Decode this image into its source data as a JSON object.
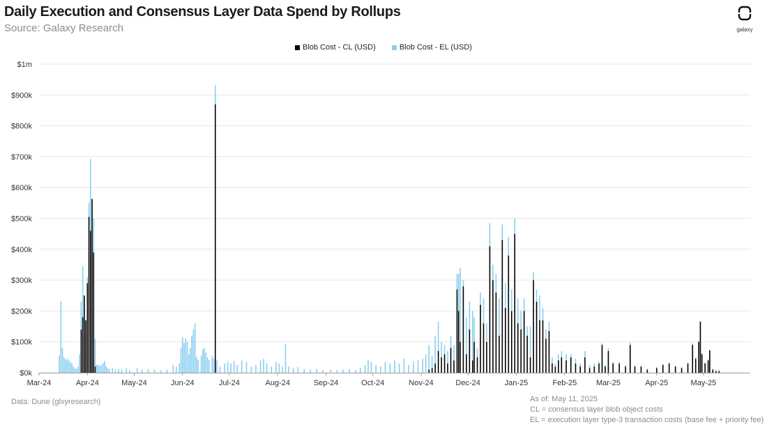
{
  "header": {
    "title": "Daily Execution and Consensus Layer Data Spend by Rollups",
    "subtitle": "Source: Galaxy Research",
    "logo_text": "galaxy"
  },
  "footer": {
    "data_source": "Data: Dune (glxyresearch)",
    "as_of": "As of: May 11, 2025",
    "cl_note": "CL = consensus layer blob object costs",
    "el_note": "EL = execution layer type-3 transaction costs (base fee + priority fee)"
  },
  "chart_data": {
    "type": "bar",
    "stacked": true,
    "legend": [
      "Blob Cost - CL (USD)",
      "Blob Cost - EL (USD)"
    ],
    "legend_position": "top-center",
    "colors": {
      "cl": "#000000",
      "el": "#89CFF0"
    },
    "gridlines": "horizontal",
    "y_ticks": [
      {
        "v": 0,
        "label": "$0k"
      },
      {
        "v": 100000,
        "label": "$100k"
      },
      {
        "v": 200000,
        "label": "$200k"
      },
      {
        "v": 300000,
        "label": "$300k"
      },
      {
        "v": 400000,
        "label": "$400k"
      },
      {
        "v": 500000,
        "label": "$500k"
      },
      {
        "v": 600000,
        "label": "$600k"
      },
      {
        "v": 700000,
        "label": "$700k"
      },
      {
        "v": 800000,
        "label": "$800k"
      },
      {
        "v": 900000,
        "label": "$900k"
      },
      {
        "v": 1000000,
        "label": "$1m"
      }
    ],
    "ylim": [
      0,
      1000000
    ],
    "x_start": "2024-03-01",
    "x_end": "2025-05-31",
    "x_ticks": [
      {
        "date": "2024-03-01",
        "label": "Mar-24"
      },
      {
        "date": "2024-04-01",
        "label": "Apr-24"
      },
      {
        "date": "2024-05-01",
        "label": "May-24"
      },
      {
        "date": "2024-06-01",
        "label": "Jun-24"
      },
      {
        "date": "2024-07-01",
        "label": "Jul-24"
      },
      {
        "date": "2024-08-01",
        "label": "Aug-24"
      },
      {
        "date": "2024-09-01",
        "label": "Sep-24"
      },
      {
        "date": "2024-10-01",
        "label": "Oct-24"
      },
      {
        "date": "2024-11-01",
        "label": "Nov-24"
      },
      {
        "date": "2024-12-01",
        "label": "Dec-24"
      },
      {
        "date": "2025-01-01",
        "label": "Jan-25"
      },
      {
        "date": "2025-02-01",
        "label": "Feb-25"
      },
      {
        "date": "2025-03-01",
        "label": "Mar-25"
      },
      {
        "date": "2025-04-01",
        "label": "Apr-25"
      },
      {
        "date": "2025-05-01",
        "label": "May-25"
      }
    ],
    "series": [
      {
        "name": "Blob Cost - CL (USD)",
        "key": "cl"
      },
      {
        "name": "Blob Cost - EL (USD)",
        "key": "el"
      }
    ],
    "points": [
      {
        "date": "2024-03-14",
        "cl": 0,
        "el": 55000
      },
      {
        "date": "2024-03-15",
        "cl": 0,
        "el": 232000
      },
      {
        "date": "2024-03-16",
        "cl": 0,
        "el": 80000
      },
      {
        "date": "2024-03-17",
        "cl": 0,
        "el": 50000
      },
      {
        "date": "2024-03-18",
        "cl": 0,
        "el": 42000
      },
      {
        "date": "2024-03-19",
        "cl": 0,
        "el": 45000
      },
      {
        "date": "2024-03-20",
        "cl": 0,
        "el": 40000
      },
      {
        "date": "2024-03-21",
        "cl": 0,
        "el": 35000
      },
      {
        "date": "2024-03-22",
        "cl": 0,
        "el": 30000
      },
      {
        "date": "2024-03-23",
        "cl": 0,
        "el": 20000
      },
      {
        "date": "2024-03-24",
        "cl": 0,
        "el": 15000
      },
      {
        "date": "2024-03-25",
        "cl": 0,
        "el": 12000
      },
      {
        "date": "2024-03-26",
        "cl": 0,
        "el": 20000
      },
      {
        "date": "2024-03-27",
        "cl": 0,
        "el": 60000
      },
      {
        "date": "2024-03-28",
        "cl": 140000,
        "el": 90000
      },
      {
        "date": "2024-03-29",
        "cl": 180000,
        "el": 165000
      },
      {
        "date": "2024-03-30",
        "cl": 250000,
        "el": 0
      },
      {
        "date": "2024-03-31",
        "cl": 170000,
        "el": 0
      },
      {
        "date": "2024-04-01",
        "cl": 290000,
        "el": 20000
      },
      {
        "date": "2024-04-02",
        "cl": 505000,
        "el": 45000
      },
      {
        "date": "2024-04-03",
        "cl": 460000,
        "el": 232000
      },
      {
        "date": "2024-04-04",
        "cl": 563000,
        "el": 0
      },
      {
        "date": "2024-04-05",
        "cl": 390000,
        "el": 110000
      },
      {
        "date": "2024-04-06",
        "cl": 20000,
        "el": 90000
      },
      {
        "date": "2024-04-07",
        "cl": 0,
        "el": 25000
      },
      {
        "date": "2024-04-08",
        "cl": 0,
        "el": 25000
      },
      {
        "date": "2024-04-09",
        "cl": 0,
        "el": 22000
      },
      {
        "date": "2024-04-10",
        "cl": 0,
        "el": 25000
      },
      {
        "date": "2024-04-11",
        "cl": 0,
        "el": 30000
      },
      {
        "date": "2024-04-12",
        "cl": 0,
        "el": 38000
      },
      {
        "date": "2024-04-13",
        "cl": 0,
        "el": 20000
      },
      {
        "date": "2024-04-14",
        "cl": 0,
        "el": 15000
      },
      {
        "date": "2024-04-15",
        "cl": 0,
        "el": 12000
      },
      {
        "date": "2024-04-17",
        "cl": 0,
        "el": 15000
      },
      {
        "date": "2024-04-19",
        "cl": 0,
        "el": 10000
      },
      {
        "date": "2024-04-21",
        "cl": 0,
        "el": 12000
      },
      {
        "date": "2024-04-23",
        "cl": 0,
        "el": 10000
      },
      {
        "date": "2024-04-26",
        "cl": 0,
        "el": 15000
      },
      {
        "date": "2024-04-28",
        "cl": 0,
        "el": 8000
      },
      {
        "date": "2024-05-03",
        "cl": 0,
        "el": 15000
      },
      {
        "date": "2024-05-06",
        "cl": 0,
        "el": 10000
      },
      {
        "date": "2024-05-10",
        "cl": 0,
        "el": 12000
      },
      {
        "date": "2024-05-14",
        "cl": 0,
        "el": 10000
      },
      {
        "date": "2024-05-18",
        "cl": 0,
        "el": 8000
      },
      {
        "date": "2024-05-22",
        "cl": 0,
        "el": 10000
      },
      {
        "date": "2024-05-26",
        "cl": 0,
        "el": 25000
      },
      {
        "date": "2024-05-28",
        "cl": 0,
        "el": 20000
      },
      {
        "date": "2024-05-30",
        "cl": 0,
        "el": 30000
      },
      {
        "date": "2024-05-31",
        "cl": 0,
        "el": 80000
      },
      {
        "date": "2024-06-01",
        "cl": 0,
        "el": 115000
      },
      {
        "date": "2024-06-02",
        "cl": 0,
        "el": 95000
      },
      {
        "date": "2024-06-03",
        "cl": 0,
        "el": 110000
      },
      {
        "date": "2024-06-04",
        "cl": 0,
        "el": 100000
      },
      {
        "date": "2024-06-05",
        "cl": 0,
        "el": 60000
      },
      {
        "date": "2024-06-06",
        "cl": 0,
        "el": 80000
      },
      {
        "date": "2024-06-07",
        "cl": 0,
        "el": 120000
      },
      {
        "date": "2024-06-08",
        "cl": 0,
        "el": 140000
      },
      {
        "date": "2024-06-09",
        "cl": 0,
        "el": 160000
      },
      {
        "date": "2024-06-10",
        "cl": 0,
        "el": 50000
      },
      {
        "date": "2024-06-11",
        "cl": 0,
        "el": 40000
      },
      {
        "date": "2024-06-13",
        "cl": 0,
        "el": 55000
      },
      {
        "date": "2024-06-14",
        "cl": 0,
        "el": 75000
      },
      {
        "date": "2024-06-15",
        "cl": 0,
        "el": 80000
      },
      {
        "date": "2024-06-16",
        "cl": 0,
        "el": 65000
      },
      {
        "date": "2024-06-17",
        "cl": 0,
        "el": 50000
      },
      {
        "date": "2024-06-18",
        "cl": 0,
        "el": 40000
      },
      {
        "date": "2024-06-20",
        "cl": 0,
        "el": 55000
      },
      {
        "date": "2024-06-21",
        "cl": 0,
        "el": 45000
      },
      {
        "date": "2024-06-22",
        "cl": 870000,
        "el": 62000
      },
      {
        "date": "2024-06-23",
        "cl": 0,
        "el": 40000
      },
      {
        "date": "2024-06-25",
        "cl": 0,
        "el": 20000
      },
      {
        "date": "2024-06-28",
        "cl": 0,
        "el": 30000
      },
      {
        "date": "2024-06-30",
        "cl": 0,
        "el": 35000
      },
      {
        "date": "2024-07-02",
        "cl": 0,
        "el": 30000
      },
      {
        "date": "2024-07-04",
        "cl": 0,
        "el": 38000
      },
      {
        "date": "2024-07-06",
        "cl": 0,
        "el": 25000
      },
      {
        "date": "2024-07-09",
        "cl": 0,
        "el": 40000
      },
      {
        "date": "2024-07-12",
        "cl": 0,
        "el": 35000
      },
      {
        "date": "2024-07-15",
        "cl": 0,
        "el": 20000
      },
      {
        "date": "2024-07-18",
        "cl": 0,
        "el": 25000
      },
      {
        "date": "2024-07-21",
        "cl": 0,
        "el": 40000
      },
      {
        "date": "2024-07-23",
        "cl": 0,
        "el": 45000
      },
      {
        "date": "2024-07-25",
        "cl": 0,
        "el": 30000
      },
      {
        "date": "2024-07-28",
        "cl": 0,
        "el": 20000
      },
      {
        "date": "2024-07-31",
        "cl": 0,
        "el": 35000
      },
      {
        "date": "2024-08-02",
        "cl": 0,
        "el": 30000
      },
      {
        "date": "2024-08-04",
        "cl": 0,
        "el": 20000
      },
      {
        "date": "2024-08-06",
        "cl": 0,
        "el": 92000
      },
      {
        "date": "2024-08-08",
        "cl": 0,
        "el": 20000
      },
      {
        "date": "2024-08-11",
        "cl": 0,
        "el": 15000
      },
      {
        "date": "2024-08-14",
        "cl": 0,
        "el": 18000
      },
      {
        "date": "2024-08-18",
        "cl": 0,
        "el": 12000
      },
      {
        "date": "2024-08-22",
        "cl": 0,
        "el": 10000
      },
      {
        "date": "2024-08-26",
        "cl": 0,
        "el": 12000
      },
      {
        "date": "2024-08-30",
        "cl": 0,
        "el": 8000
      },
      {
        "date": "2024-09-04",
        "cl": 0,
        "el": 10000
      },
      {
        "date": "2024-09-08",
        "cl": 0,
        "el": 8000
      },
      {
        "date": "2024-09-12",
        "cl": 0,
        "el": 10000
      },
      {
        "date": "2024-09-16",
        "cl": 0,
        "el": 12000
      },
      {
        "date": "2024-09-20",
        "cl": 0,
        "el": 8000
      },
      {
        "date": "2024-09-23",
        "cl": 0,
        "el": 15000
      },
      {
        "date": "2024-09-26",
        "cl": 0,
        "el": 25000
      },
      {
        "date": "2024-09-28",
        "cl": 0,
        "el": 40000
      },
      {
        "date": "2024-09-30",
        "cl": 0,
        "el": 35000
      },
      {
        "date": "2024-10-03",
        "cl": 0,
        "el": 25000
      },
      {
        "date": "2024-10-06",
        "cl": 0,
        "el": 20000
      },
      {
        "date": "2024-10-09",
        "cl": 0,
        "el": 35000
      },
      {
        "date": "2024-10-12",
        "cl": 0,
        "el": 30000
      },
      {
        "date": "2024-10-15",
        "cl": 0,
        "el": 40000
      },
      {
        "date": "2024-10-18",
        "cl": 0,
        "el": 30000
      },
      {
        "date": "2024-10-21",
        "cl": 0,
        "el": 45000
      },
      {
        "date": "2024-10-24",
        "cl": 0,
        "el": 25000
      },
      {
        "date": "2024-10-27",
        "cl": 0,
        "el": 35000
      },
      {
        "date": "2024-10-30",
        "cl": 0,
        "el": 40000
      },
      {
        "date": "2024-11-02",
        "cl": 0,
        "el": 45000
      },
      {
        "date": "2024-11-04",
        "cl": 0,
        "el": 60000
      },
      {
        "date": "2024-11-06",
        "cl": 10000,
        "el": 80000
      },
      {
        "date": "2024-11-08",
        "cl": 15000,
        "el": 40000
      },
      {
        "date": "2024-11-10",
        "cl": 30000,
        "el": 90000
      },
      {
        "date": "2024-11-12",
        "cl": 70000,
        "el": 95000
      },
      {
        "date": "2024-11-14",
        "cl": 50000,
        "el": 50000
      },
      {
        "date": "2024-11-16",
        "cl": 60000,
        "el": 30000
      },
      {
        "date": "2024-11-18",
        "cl": 30000,
        "el": 40000
      },
      {
        "date": "2024-11-20",
        "cl": 80000,
        "el": 40000
      },
      {
        "date": "2024-11-22",
        "cl": 40000,
        "el": 50000
      },
      {
        "date": "2024-11-24",
        "cl": 270000,
        "el": 50000
      },
      {
        "date": "2024-11-25",
        "cl": 200000,
        "el": 120000
      },
      {
        "date": "2024-11-26",
        "cl": 100000,
        "el": 240000
      },
      {
        "date": "2024-11-28",
        "cl": 280000,
        "el": 20000
      },
      {
        "date": "2024-11-30",
        "cl": 60000,
        "el": 120000
      },
      {
        "date": "2024-12-02",
        "cl": 140000,
        "el": 90000
      },
      {
        "date": "2024-12-04",
        "cl": 40000,
        "el": 160000
      },
      {
        "date": "2024-12-05",
        "cl": 100000,
        "el": 80000
      },
      {
        "date": "2024-12-07",
        "cl": 50000,
        "el": 30000
      },
      {
        "date": "2024-12-09",
        "cl": 220000,
        "el": 40000
      },
      {
        "date": "2024-12-11",
        "cl": 160000,
        "el": 80000
      },
      {
        "date": "2024-12-13",
        "cl": 100000,
        "el": 60000
      },
      {
        "date": "2024-12-15",
        "cl": 410000,
        "el": 75000
      },
      {
        "date": "2024-12-17",
        "cl": 300000,
        "el": 50000
      },
      {
        "date": "2024-12-19",
        "cl": 260000,
        "el": 60000
      },
      {
        "date": "2024-12-21",
        "cl": 120000,
        "el": 120000
      },
      {
        "date": "2024-12-23",
        "cl": 430000,
        "el": 50000
      },
      {
        "date": "2024-12-25",
        "cl": 210000,
        "el": 80000
      },
      {
        "date": "2024-12-27",
        "cl": 380000,
        "el": 60000
      },
      {
        "date": "2024-12-29",
        "cl": 200000,
        "el": 70000
      },
      {
        "date": "2024-12-31",
        "cl": 450000,
        "el": 50000
      },
      {
        "date": "2025-01-02",
        "cl": 160000,
        "el": 80000
      },
      {
        "date": "2025-01-04",
        "cl": 140000,
        "el": 60000
      },
      {
        "date": "2025-01-06",
        "cl": 200000,
        "el": 40000
      },
      {
        "date": "2025-01-08",
        "cl": 120000,
        "el": 30000
      },
      {
        "date": "2025-01-10",
        "cl": 50000,
        "el": 100000
      },
      {
        "date": "2025-01-12",
        "cl": 300000,
        "el": 25000
      },
      {
        "date": "2025-01-14",
        "cl": 230000,
        "el": 40000
      },
      {
        "date": "2025-01-16",
        "cl": 170000,
        "el": 80000
      },
      {
        "date": "2025-01-18",
        "cl": 170000,
        "el": 40000
      },
      {
        "date": "2025-01-20",
        "cl": 110000,
        "el": 30000
      },
      {
        "date": "2025-01-22",
        "cl": 135000,
        "el": 30000
      },
      {
        "date": "2025-01-24",
        "cl": 30000,
        "el": 20000
      },
      {
        "date": "2025-01-26",
        "cl": 20000,
        "el": 10000
      },
      {
        "date": "2025-01-28",
        "cl": 40000,
        "el": 20000
      },
      {
        "date": "2025-01-30",
        "cl": 50000,
        "el": 20000
      },
      {
        "date": "2025-02-02",
        "cl": 40000,
        "el": 20000
      },
      {
        "date": "2025-02-05",
        "cl": 50000,
        "el": 10000
      },
      {
        "date": "2025-02-08",
        "cl": 30000,
        "el": 15000
      },
      {
        "date": "2025-02-11",
        "cl": 20000,
        "el": 10000
      },
      {
        "date": "2025-02-14",
        "cl": 50000,
        "el": 20000
      },
      {
        "date": "2025-02-17",
        "cl": 15000,
        "el": 10000
      },
      {
        "date": "2025-02-20",
        "cl": 20000,
        "el": 10000
      },
      {
        "date": "2025-02-23",
        "cl": 30000,
        "el": 5000
      },
      {
        "date": "2025-02-25",
        "cl": 90000,
        "el": 5000
      },
      {
        "date": "2025-02-27",
        "cl": 20000,
        "el": 5000
      },
      {
        "date": "2025-03-01",
        "cl": 70000,
        "el": 10000
      },
      {
        "date": "2025-03-04",
        "cl": 30000,
        "el": 5000
      },
      {
        "date": "2025-03-08",
        "cl": 30000,
        "el": 5000
      },
      {
        "date": "2025-03-12",
        "cl": 20000,
        "el": 5000
      },
      {
        "date": "2025-03-15",
        "cl": 90000,
        "el": 8000
      },
      {
        "date": "2025-03-18",
        "cl": 20000,
        "el": 3000
      },
      {
        "date": "2025-03-22",
        "cl": 20000,
        "el": 3000
      },
      {
        "date": "2025-03-26",
        "cl": 10000,
        "el": 3000
      },
      {
        "date": "2025-04-01",
        "cl": 15000,
        "el": 3000
      },
      {
        "date": "2025-04-05",
        "cl": 25000,
        "el": 3000
      },
      {
        "date": "2025-04-09",
        "cl": 30000,
        "el": 3000
      },
      {
        "date": "2025-04-13",
        "cl": 20000,
        "el": 3000
      },
      {
        "date": "2025-04-17",
        "cl": 15000,
        "el": 3000
      },
      {
        "date": "2025-04-21",
        "cl": 30000,
        "el": 3000
      },
      {
        "date": "2025-04-24",
        "cl": 90000,
        "el": 5000
      },
      {
        "date": "2025-04-26",
        "cl": 45000,
        "el": 5000
      },
      {
        "date": "2025-04-28",
        "cl": 100000,
        "el": 5000
      },
      {
        "date": "2025-04-29",
        "cl": 165000,
        "el": 3000
      },
      {
        "date": "2025-04-30",
        "cl": 60000,
        "el": 3000
      },
      {
        "date": "2025-05-02",
        "cl": 30000,
        "el": 3000
      },
      {
        "date": "2025-05-04",
        "cl": 40000,
        "el": 3000
      },
      {
        "date": "2025-05-05",
        "cl": 72000,
        "el": 3000
      },
      {
        "date": "2025-05-07",
        "cl": 10000,
        "el": 3000
      },
      {
        "date": "2025-05-09",
        "cl": 5000,
        "el": 5000
      },
      {
        "date": "2025-05-11",
        "cl": 5000,
        "el": 5000
      }
    ]
  }
}
